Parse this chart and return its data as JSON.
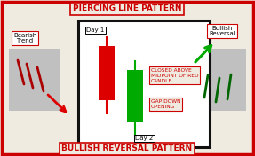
{
  "bg_color": "#f0ebe0",
  "border_color": "#cc0000",
  "title_top": "PIERCING LINE PATTERN",
  "title_bottom": "BULLISH REVERSAL PATTERN",
  "title_fontsize": 6.5,
  "label_bearish": "Bearish\nTrend",
  "label_bullish": "Bullish\nReversal",
  "day1_label": "Day 1",
  "day2_label": "Day 2",
  "red_candle": {
    "open": 8.2,
    "close": 5.2,
    "high": 8.7,
    "low": 4.5
  },
  "green_candle": {
    "open": 4.0,
    "close": 6.9,
    "high": 7.4,
    "low": 3.3
  },
  "annotation1": "CLOSED ABOVE\nMIDPOINT OF RED\nCANDLE",
  "annotation2": "GAP DOWN\nOPENING",
  "candle_box_bg": "#ffffff",
  "candle_box_border": "#111111",
  "red_color": "#dd0000",
  "green_color": "#00aa00",
  "dark_red_text": "#cc0000",
  "annotation_box_color": "#cc0000",
  "gray_box_color": "#c0c0c0",
  "bearish_lines_color": "#aa0000",
  "bullish_lines_color": "#006600",
  "label_box_color": "#cc0000"
}
